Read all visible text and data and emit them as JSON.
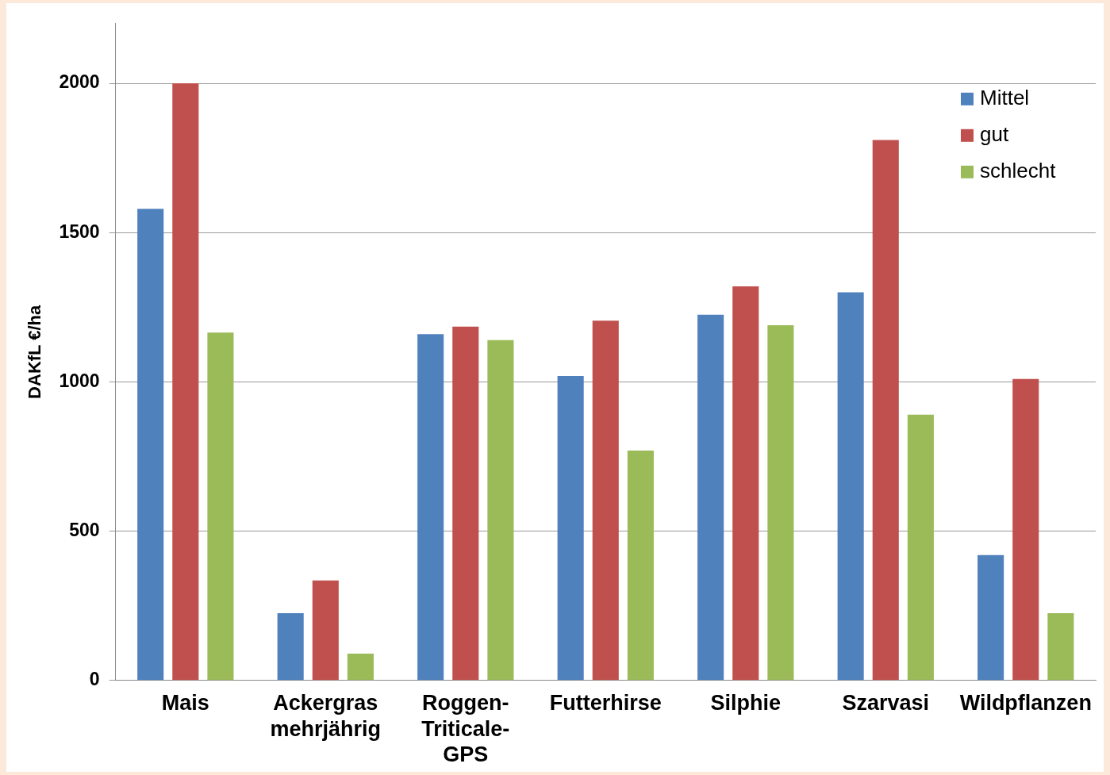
{
  "chart_data": {
    "type": "bar",
    "ylabel": "DAKfL €/ha",
    "categories": [
      "Mais",
      "Ackergras mehrjährig",
      "Roggen-Triticale-GPS",
      "Futterhirse",
      "Silphie",
      "Szarvasi",
      "Wildpflanzen"
    ],
    "series": [
      {
        "name": "Mittel",
        "color": "#4f81bd",
        "values": [
          1580,
          225,
          1160,
          1020,
          1225,
          1300,
          420
        ]
      },
      {
        "name": "gut",
        "color": "#c0504d",
        "values": [
          2000,
          335,
          1185,
          1205,
          1320,
          1810,
          1010
        ]
      },
      {
        "name": "schlecht",
        "color": "#9bbb59",
        "values": [
          1165,
          90,
          1140,
          770,
          1190,
          890,
          225
        ]
      }
    ],
    "ylim": [
      0,
      2200
    ],
    "yticks": [
      0,
      500,
      1000,
      1500,
      2000
    ],
    "grid": "y",
    "legend": "top right"
  }
}
